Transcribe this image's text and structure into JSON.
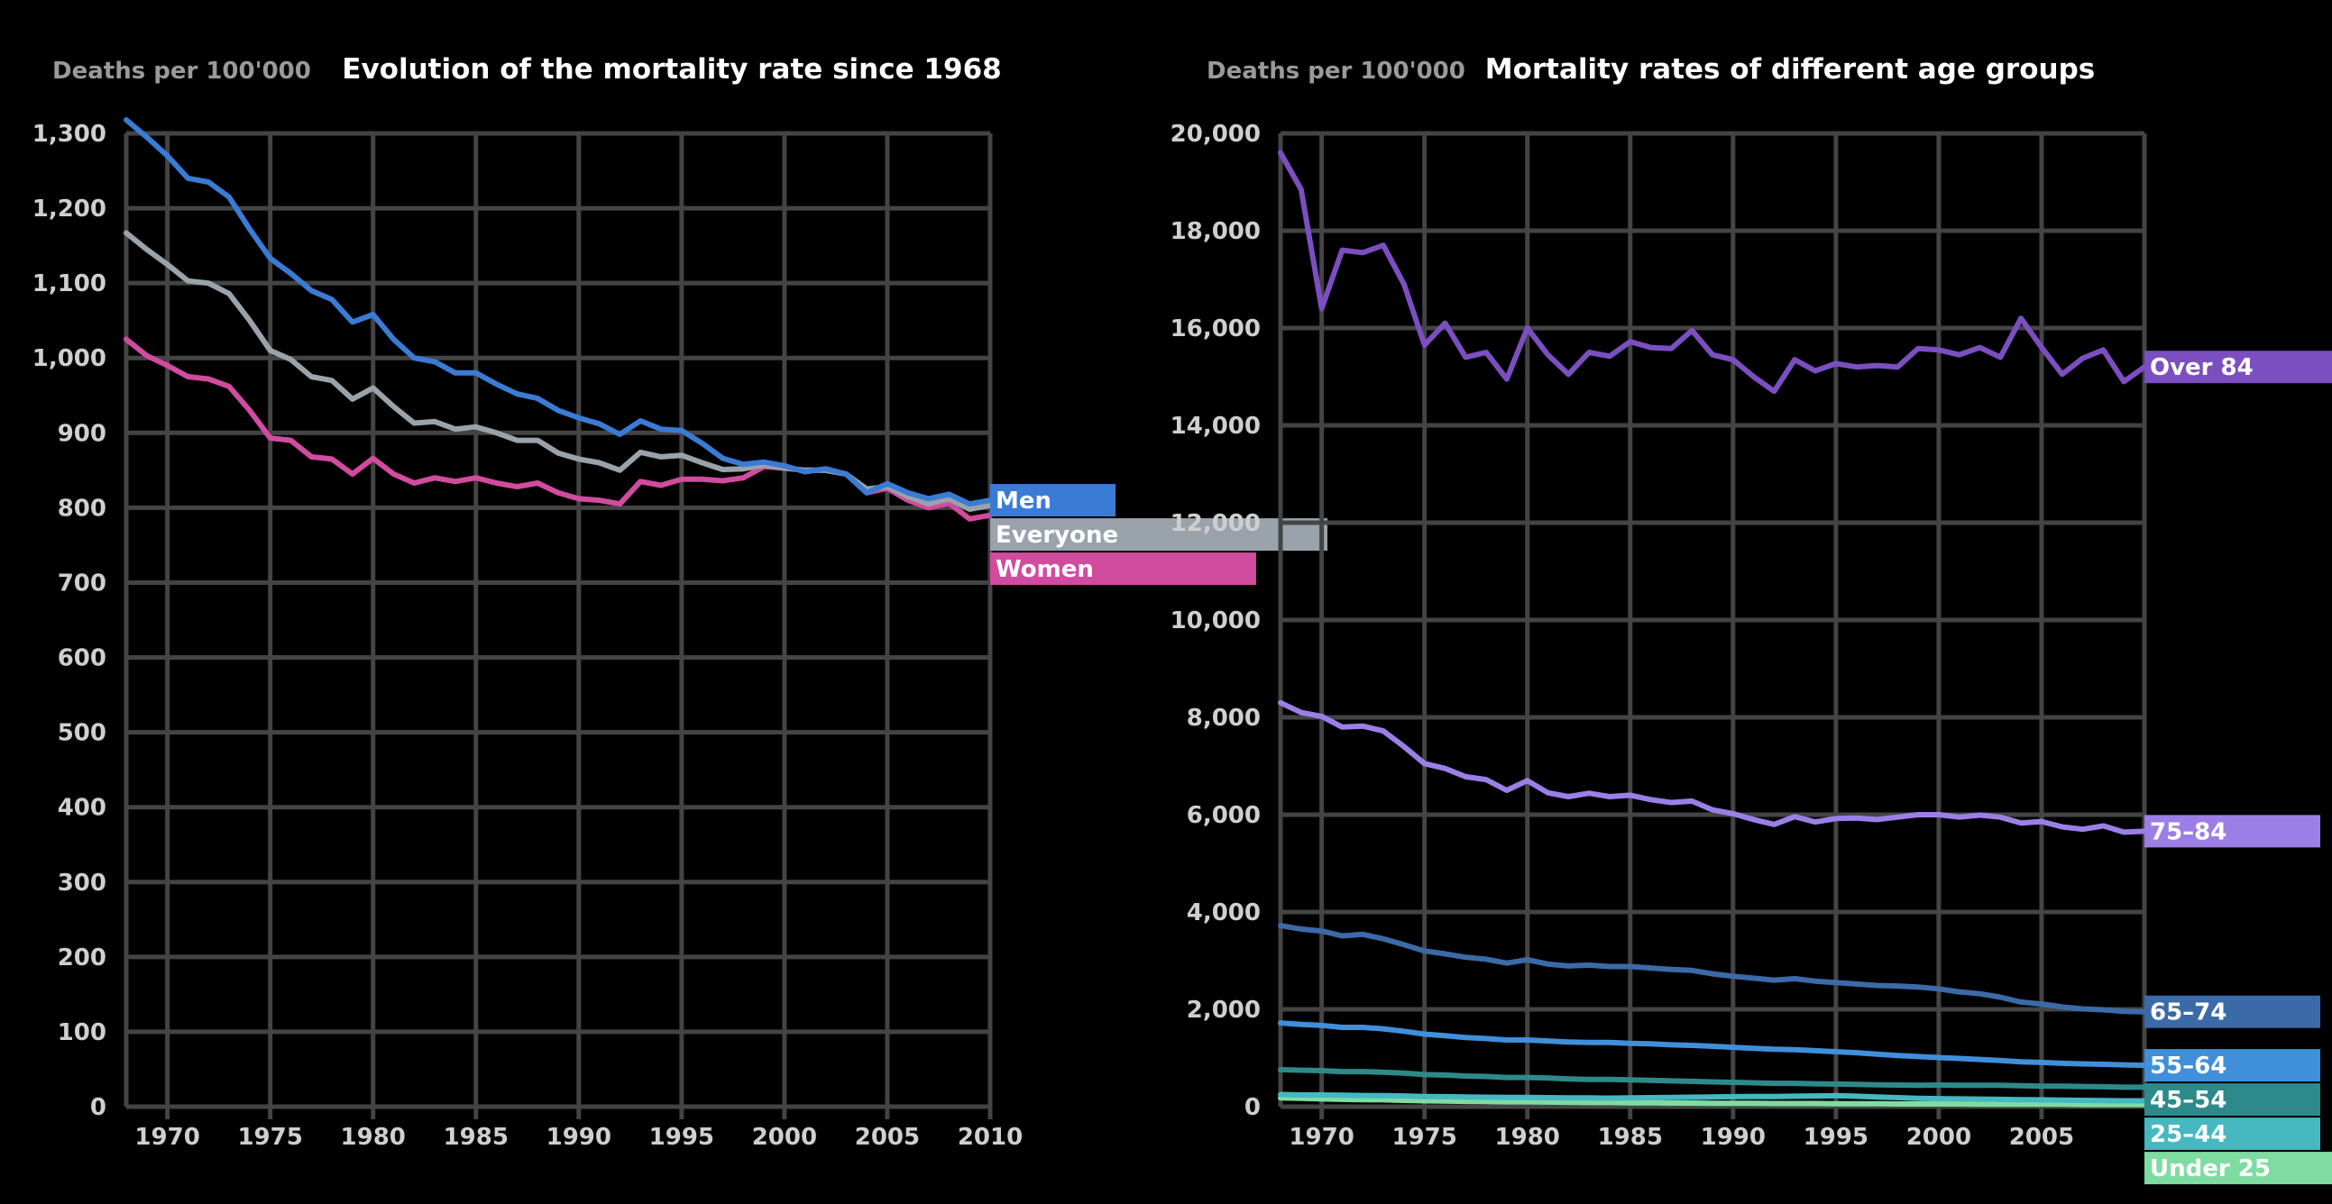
{
  "chart_data": [
    {
      "type": "line",
      "title": "Evolution of the mortality rate since 1968",
      "ylabel": "Deaths per 100'000",
      "xlim": [
        1968,
        2010
      ],
      "ylim": [
        0,
        1300
      ],
      "yticks": [
        0,
        100,
        200,
        300,
        400,
        500,
        600,
        700,
        800,
        900,
        1000,
        1100,
        1200,
        1300
      ],
      "ytick_labels": [
        "0",
        "100",
        "200",
        "300",
        "400",
        "500",
        "600",
        "700",
        "800",
        "900",
        "1,000",
        "1,100",
        "1,200",
        "1,300"
      ],
      "xticks": [
        1970,
        1975,
        1980,
        1985,
        1990,
        1995,
        2000,
        2005,
        2010
      ],
      "xtick_labels": [
        "1970",
        "1975",
        "1980",
        "1985",
        "1990",
        "1995",
        "2000",
        "2005",
        "2010"
      ],
      "grid": true,
      "x": [
        1968,
        1969,
        1970,
        1971,
        1972,
        1973,
        1974,
        1975,
        1976,
        1977,
        1978,
        1979,
        1980,
        1981,
        1982,
        1983,
        1984,
        1985,
        1986,
        1987,
        1988,
        1989,
        1990,
        1991,
        1992,
        1993,
        1994,
        1995,
        1996,
        1997,
        1998,
        1999,
        2000,
        2001,
        2002,
        2003,
        2004,
        2005,
        2006,
        2007,
        2008,
        2009,
        2010
      ],
      "series": [
        {
          "name": "Men",
          "color": "#3a7bd5",
          "values": [
            1318,
            1295,
            1270,
            1240,
            1235,
            1215,
            1172,
            1133,
            1113,
            1090,
            1078,
            1048,
            1058,
            1025,
            1000,
            995,
            980,
            980,
            965,
            952,
            946,
            930,
            920,
            912,
            898,
            916,
            905,
            903,
            886,
            866,
            858,
            861,
            856,
            848,
            852,
            845,
            820,
            832,
            820,
            812,
            818,
            805,
            810
          ]
        },
        {
          "name": "Everyone",
          "color": "#9aa3ab",
          "values": [
            1167,
            1145,
            1125,
            1103,
            1100,
            1086,
            1050,
            1010,
            998,
            975,
            970,
            945,
            960,
            935,
            913,
            915,
            905,
            908,
            900,
            890,
            890,
            873,
            865,
            860,
            850,
            874,
            868,
            870,
            860,
            851,
            852,
            857,
            853,
            850,
            850,
            845,
            825,
            828,
            815,
            805,
            812,
            798,
            803
          ]
        },
        {
          "name": "Women",
          "color": "#d14b9e",
          "values": [
            1025,
            1003,
            990,
            975,
            972,
            962,
            930,
            893,
            890,
            868,
            865,
            845,
            866,
            845,
            833,
            840,
            835,
            840,
            833,
            828,
            833,
            820,
            812,
            810,
            805,
            835,
            830,
            838,
            838,
            836,
            840,
            855,
            853,
            850,
            850,
            845,
            820,
            826,
            810,
            800,
            806,
            785,
            790
          ]
        }
      ]
    },
    {
      "type": "line",
      "title": "Mortality rates of different age groups",
      "ylabel": "Deaths per 100'000",
      "xlim": [
        1968,
        2010
      ],
      "ylim": [
        0,
        20000
      ],
      "yticks": [
        0,
        2000,
        4000,
        6000,
        8000,
        10000,
        12000,
        14000,
        16000,
        18000,
        20000
      ],
      "ytick_labels": [
        "0",
        "2,000",
        "4,000",
        "6,000",
        "8,000",
        "10,000",
        "12,000",
        "14,000",
        "16,000",
        "18,000",
        "20,000"
      ],
      "xticks": [
        1970,
        1975,
        1980,
        1985,
        1990,
        1995,
        2000,
        2005
      ],
      "xtick_labels": [
        "1970",
        "1975",
        "1980",
        "1985",
        "1990",
        "1995",
        "2000",
        "2005"
      ],
      "grid": true,
      "x": [
        1968,
        1969,
        1970,
        1971,
        1972,
        1973,
        1974,
        1975,
        1976,
        1977,
        1978,
        1979,
        1980,
        1981,
        1982,
        1983,
        1984,
        1985,
        1986,
        1987,
        1988,
        1989,
        1990,
        1991,
        1992,
        1993,
        1994,
        1995,
        1996,
        1997,
        1998,
        1999,
        2000,
        2001,
        2002,
        2003,
        2004,
        2005,
        2006,
        2007,
        2008,
        2009,
        2010
      ],
      "series": [
        {
          "name": "Over 84",
          "color": "#7b4fc0",
          "values": [
            19600,
            18850,
            16400,
            17600,
            17550,
            17700,
            16900,
            15650,
            16100,
            15400,
            15500,
            14950,
            16000,
            15450,
            15050,
            15500,
            15420,
            15720,
            15600,
            15580,
            15950,
            15450,
            15350,
            15000,
            14700,
            15350,
            15120,
            15270,
            15200,
            15230,
            15200,
            15580,
            15550,
            15450,
            15600,
            15400,
            16200,
            15600,
            15050,
            15380,
            15550,
            14900,
            15200
          ]
        },
        {
          "name": "75–84",
          "color": "#9b7fe6",
          "values": [
            8300,
            8100,
            8020,
            7800,
            7820,
            7720,
            7400,
            7050,
            6950,
            6780,
            6720,
            6500,
            6700,
            6450,
            6370,
            6440,
            6370,
            6400,
            6310,
            6250,
            6280,
            6100,
            6020,
            5900,
            5800,
            5960,
            5850,
            5920,
            5930,
            5900,
            5950,
            6000,
            6000,
            5950,
            5990,
            5950,
            5830,
            5860,
            5750,
            5700,
            5770,
            5640,
            5660
          ]
        },
        {
          "name": "65–74",
          "color": "#3b6aa8",
          "values": [
            3720,
            3650,
            3610,
            3510,
            3540,
            3450,
            3330,
            3200,
            3140,
            3070,
            3030,
            2950,
            3020,
            2930,
            2890,
            2910,
            2880,
            2880,
            2850,
            2820,
            2800,
            2730,
            2680,
            2640,
            2600,
            2630,
            2580,
            2550,
            2520,
            2490,
            2480,
            2460,
            2420,
            2360,
            2320,
            2250,
            2150,
            2110,
            2050,
            2010,
            1990,
            1960,
            1950
          ]
        },
        {
          "name": "55–64",
          "color": "#3f8fdb",
          "values": [
            1720,
            1690,
            1670,
            1630,
            1630,
            1600,
            1550,
            1490,
            1460,
            1420,
            1400,
            1370,
            1370,
            1350,
            1330,
            1320,
            1320,
            1300,
            1290,
            1270,
            1260,
            1240,
            1220,
            1200,
            1180,
            1170,
            1150,
            1130,
            1110,
            1080,
            1050,
            1030,
            1010,
            990,
            970,
            950,
            920,
            910,
            890,
            880,
            870,
            860,
            850
          ]
        },
        {
          "name": "45–54",
          "color": "#2e8a8a",
          "values": [
            760,
            750,
            740,
            720,
            720,
            710,
            690,
            660,
            650,
            630,
            620,
            600,
            600,
            590,
            570,
            560,
            560,
            550,
            540,
            530,
            520,
            510,
            500,
            490,
            480,
            480,
            470,
            465,
            460,
            450,
            445,
            440,
            445,
            440,
            440,
            440,
            430,
            420,
            420,
            415,
            410,
            400,
            400
          ]
        },
        {
          "name": "25–44",
          "color": "#45b8c0",
          "values": [
            250,
            240,
            240,
            235,
            230,
            225,
            220,
            210,
            205,
            200,
            195,
            190,
            190,
            185,
            180,
            180,
            175,
            180,
            185,
            190,
            195,
            200,
            205,
            210,
            210,
            215,
            220,
            225,
            215,
            200,
            185,
            170,
            165,
            160,
            155,
            150,
            145,
            140,
            135,
            130,
            125,
            120,
            120
          ]
        },
        {
          "name": "Under 25",
          "color": "#7fdca0",
          "values": [
            180,
            170,
            160,
            150,
            145,
            140,
            130,
            120,
            115,
            110,
            105,
            100,
            100,
            95,
            90,
            85,
            85,
            80,
            80,
            75,
            75,
            70,
            70,
            70,
            65,
            65,
            65,
            60,
            60,
            60,
            55,
            55,
            55,
            55,
            50,
            50,
            50,
            50,
            50,
            45,
            45,
            45,
            45
          ]
        }
      ]
    }
  ]
}
